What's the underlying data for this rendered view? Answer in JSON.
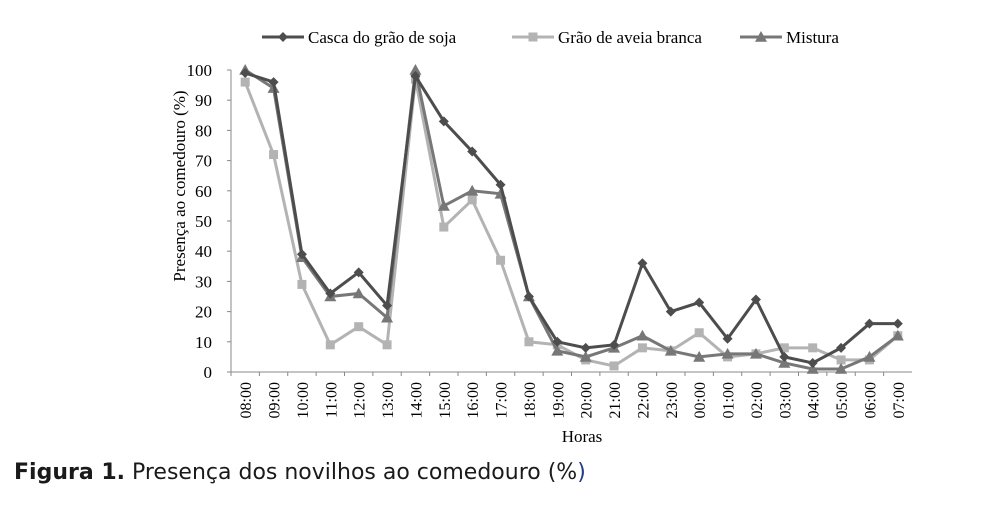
{
  "chart_data": {
    "type": "line",
    "xlabel": "Horas",
    "ylabel": "Presença ao comedouro (%)",
    "ylim": [
      0,
      100
    ],
    "yticks": [
      "0",
      "10",
      "20",
      "30",
      "40",
      "50",
      "60",
      "70",
      "80",
      "90",
      "100"
    ],
    "categories": [
      "08:00",
      "09:00",
      "10:00",
      "11:00",
      "12:00",
      "13:00",
      "14:00",
      "15:00",
      "16:00",
      "17:00",
      "18:00",
      "19:00",
      "20:00",
      "21:00",
      "22:00",
      "23:00",
      "00:00",
      "01:00",
      "02:00",
      "03:00",
      "04:00",
      "05:00",
      "06:00",
      "07:00"
    ],
    "legend_position": "top",
    "series": [
      {
        "name": "Casca do grão de soja",
        "color": "#4d4d4d",
        "marker": "diamond",
        "values": [
          99,
          96,
          39,
          26,
          33,
          22,
          98,
          83,
          73,
          62,
          25,
          10,
          8,
          9,
          36,
          20,
          23,
          11,
          24,
          5,
          3,
          8,
          16,
          16
        ]
      },
      {
        "name": "Grão de aveia branca",
        "color": "#b3b3b3",
        "marker": "square",
        "values": [
          96,
          72,
          29,
          9,
          15,
          9,
          97,
          48,
          57,
          37,
          10,
          9,
          4,
          2,
          8,
          7,
          13,
          5,
          6,
          8,
          8,
          4,
          4,
          12
        ]
      },
      {
        "name": "Mistura",
        "color": "#777777",
        "marker": "triangle",
        "values": [
          100,
          94,
          38,
          25,
          26,
          18,
          100,
          55,
          60,
          59,
          25,
          7,
          5,
          8,
          12,
          7,
          5,
          6,
          6,
          3,
          1,
          1,
          5,
          12
        ]
      }
    ]
  },
  "caption": {
    "label": "Figura 1.",
    "text_before": " Presença dos novilhos ao comedouro (%",
    "text_after": ")"
  }
}
